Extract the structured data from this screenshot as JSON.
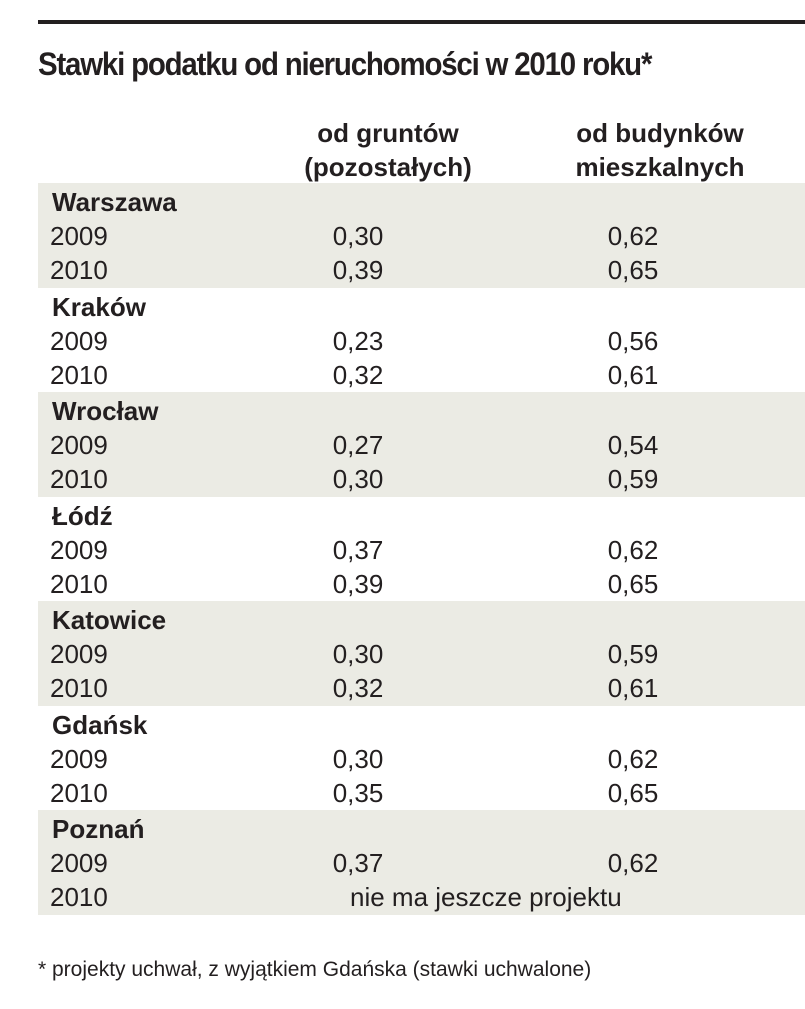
{
  "chart_data": {
    "type": "table",
    "title": "Stawki podatku od nieruchomości w 2010 roku*",
    "columns": [
      "od gruntów (pozostałych)",
      "od budynków mieszkalnych"
    ],
    "column_headers": [
      {
        "line1": "od gruntów",
        "line2": "(pozostałych)"
      },
      {
        "line1": "od budynków",
        "line2": "mieszkalnych"
      }
    ],
    "cities": [
      {
        "name": "Warszawa",
        "rows": [
          {
            "year": "2009",
            "grunty": "0,30",
            "budynki": "0,62"
          },
          {
            "year": "2010",
            "grunty": "0,39",
            "budynki": "0,65"
          }
        ]
      },
      {
        "name": "Kraków",
        "rows": [
          {
            "year": "2009",
            "grunty": "0,23",
            "budynki": "0,56"
          },
          {
            "year": "2010",
            "grunty": "0,32",
            "budynki": "0,61"
          }
        ]
      },
      {
        "name": "Wrocław",
        "rows": [
          {
            "year": "2009",
            "grunty": "0,27",
            "budynki": "0,54"
          },
          {
            "year": "2010",
            "grunty": "0,30",
            "budynki": "0,59"
          }
        ]
      },
      {
        "name": "Łódź",
        "rows": [
          {
            "year": "2009",
            "grunty": "0,37",
            "budynki": "0,62"
          },
          {
            "year": "2010",
            "grunty": "0,39",
            "budynki": "0,65"
          }
        ]
      },
      {
        "name": "Katowice",
        "rows": [
          {
            "year": "2009",
            "grunty": "0,30",
            "budynki": "0,59"
          },
          {
            "year": "2010",
            "grunty": "0,32",
            "budynki": "0,61"
          }
        ]
      },
      {
        "name": "Gdańsk",
        "rows": [
          {
            "year": "2009",
            "grunty": "0,30",
            "budynki": "0,62"
          },
          {
            "year": "2010",
            "grunty": "0,35",
            "budynki": "0,65"
          }
        ]
      },
      {
        "name": "Poznań",
        "rows": [
          {
            "year": "2009",
            "grunty": "0,37",
            "budynki": "0,62"
          },
          {
            "year": "2010",
            "note": "nie ma jeszcze projektu"
          }
        ]
      }
    ],
    "footnote": "* projekty uchwał, z wyjątkiem Gdańska (stawki uchwalone)"
  },
  "colors": {
    "text": "#231f20",
    "row_shading": "#ebebe4",
    "rule": "#231f20"
  }
}
